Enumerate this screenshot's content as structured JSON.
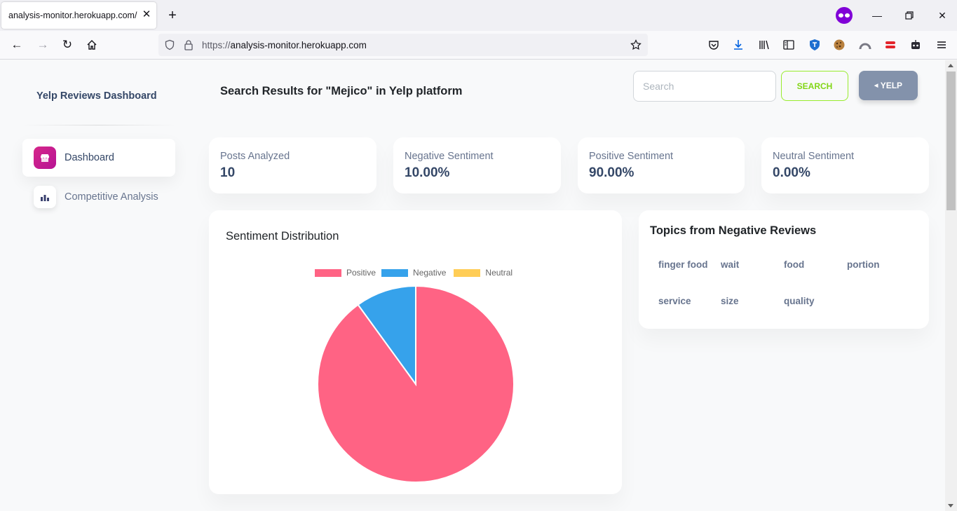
{
  "browser": {
    "tab_title": "analysis-monitor.herokuapp.com/",
    "url_protocol": "https://",
    "url_host": "analysis-monitor.herokuapp.com"
  },
  "sidebar": {
    "title": "Yelp Reviews Dashboard",
    "items": [
      {
        "label": "Dashboard",
        "icon": "shop-icon",
        "active": true
      },
      {
        "label": "Competitive Analysis",
        "icon": "chart-bar-icon",
        "active": false
      }
    ]
  },
  "header": {
    "title": "Search Results for \"Mejico\" in Yelp platform",
    "search_placeholder": "Search",
    "search_value": "",
    "search_button": "SEARCH",
    "platform_button": "YELP"
  },
  "stats": [
    {
      "label": "Posts Analyzed",
      "value": "10"
    },
    {
      "label": "Negative Sentiment",
      "value": "10.00%"
    },
    {
      "label": "Positive Sentiment",
      "value": "90.00%"
    },
    {
      "label": "Neutral Sentiment",
      "value": "0.00%"
    }
  ],
  "sentiment_card": {
    "title": "Sentiment Distribution"
  },
  "topics_card": {
    "title": "Topics from Negative Reviews",
    "topics": [
      "finger food",
      "wait",
      "food",
      "portion",
      "service",
      "size",
      "quality"
    ]
  },
  "colors": {
    "positive": "#ff6384",
    "negative": "#36a2eb",
    "neutral": "#ffcd56",
    "accent": "#cb0c9f",
    "search_green": "#82d616",
    "secondary": "#8392ab"
  },
  "chart_data": {
    "type": "pie",
    "categories": [
      "Positive",
      "Negative",
      "Neutral"
    ],
    "values": [
      90,
      10,
      0
    ],
    "colors": [
      "#ff6384",
      "#36a2eb",
      "#ffcd56"
    ],
    "title": "",
    "legend": "top"
  }
}
